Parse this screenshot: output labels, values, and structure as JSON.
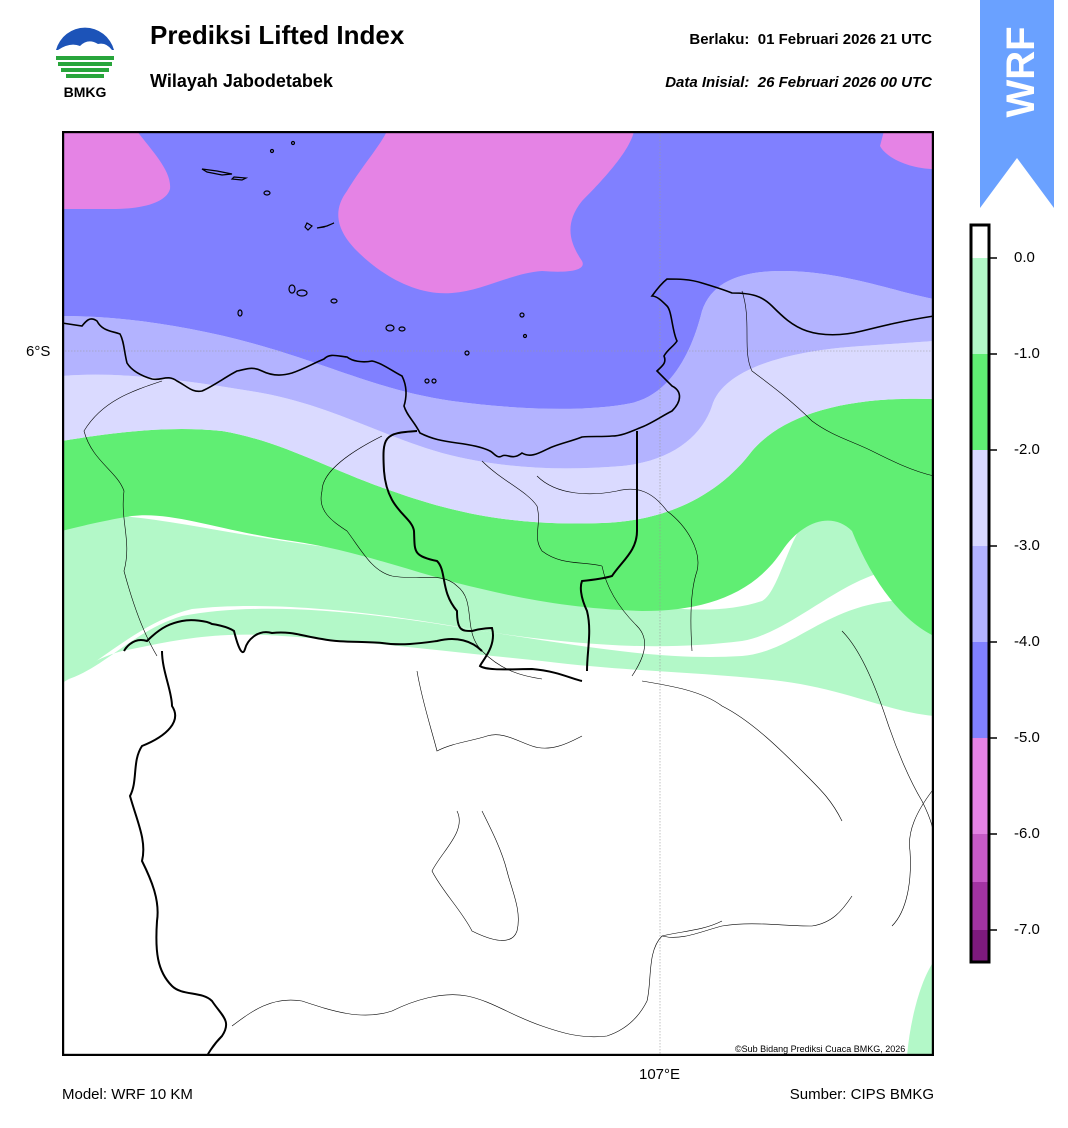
{
  "header": {
    "title": "Prediksi Lifted Index",
    "subtitle": "Wilayah Jabodetabek",
    "valid_label": "Berlaku:",
    "valid_value": "01 Februari 2026 21 UTC",
    "init_label": "Data Inisial:",
    "init_value": "26 Februari 2026 00 UTC"
  },
  "logo": {
    "text": "BMKG",
    "icon": "bmkg-logo"
  },
  "badge": {
    "text": "WRF",
    "color": "#6aa1ff"
  },
  "map": {
    "lat_label": "6°S",
    "lon_label": "107°E",
    "copyright": "©Sub Bidang Prediksi Cuaca BMKG, 2026"
  },
  "footer": {
    "model": "Model: WRF 10 KM",
    "source": "Sumber: CIPS BMKG"
  },
  "colorbar": {
    "ticks": [
      "0.0",
      "-1.0",
      "-2.0",
      "-3.0",
      "-4.0",
      "-5.0",
      "-6.0",
      "-7.0"
    ],
    "colors": [
      "#b3f8c8",
      "#60ee73",
      "#dadaff",
      "#b3b3ff",
      "#8080ff",
      "#e583e5",
      "#c75bc7",
      "#a133a1",
      "#7d1a7d"
    ]
  }
}
